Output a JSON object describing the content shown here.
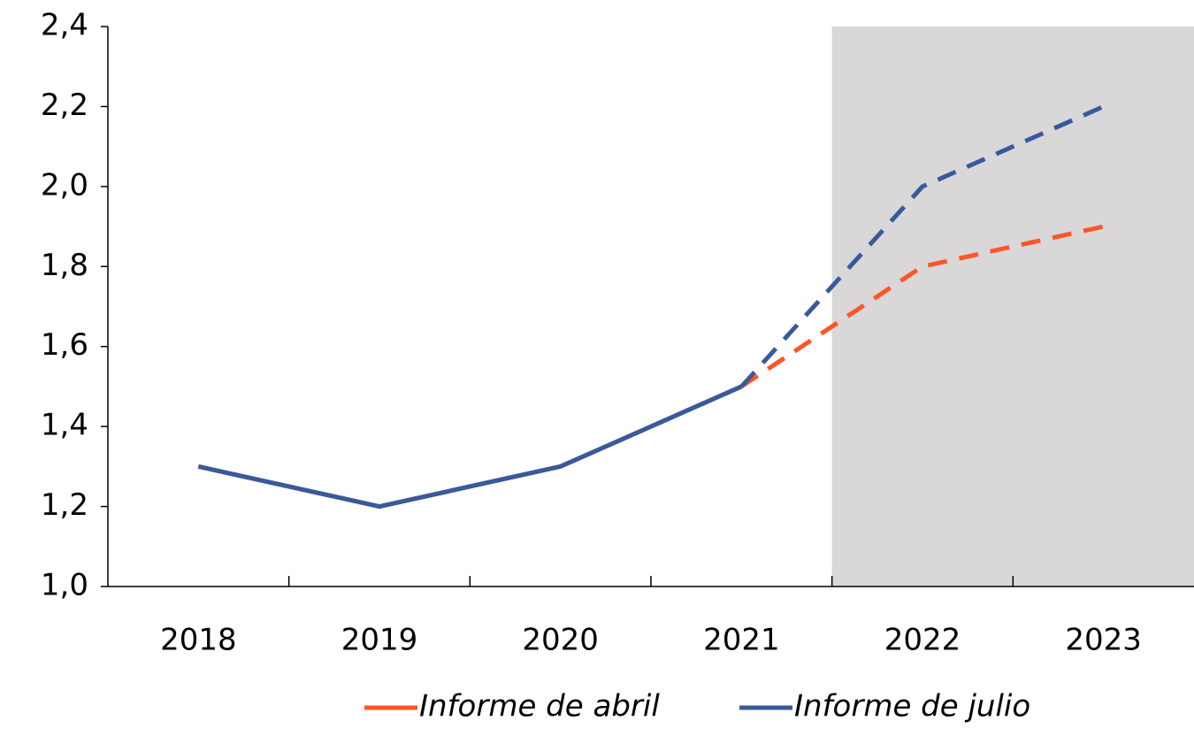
{
  "chart_data": {
    "type": "line",
    "categories": [
      "2018",
      "2019",
      "2020",
      "2021",
      "2022",
      "2023"
    ],
    "series": [
      {
        "name": "Informe de abril",
        "color": "#fc5626",
        "values": [
          1.3,
          1.2,
          1.3,
          1.5,
          1.8,
          1.9
        ]
      },
      {
        "name": "Informe de julio",
        "color": "#375a9c",
        "values": [
          1.3,
          1.2,
          1.3,
          1.5,
          2.0,
          2.2
        ]
      }
    ],
    "projection_start": "2022",
    "shade_color": "#d9d7d8",
    "ylim": [
      1.0,
      2.4
    ],
    "yticks": [
      {
        "value": 1.0,
        "label": "1,0"
      },
      {
        "value": 1.2,
        "label": "1,2"
      },
      {
        "value": 1.4,
        "label": "1,4"
      },
      {
        "value": 1.6,
        "label": "1,6"
      },
      {
        "value": 1.8,
        "label": "1,8"
      },
      {
        "value": 2.0,
        "label": "2,0"
      },
      {
        "value": 2.2,
        "label": "2,2"
      },
      {
        "value": 2.4,
        "label": "2,4"
      }
    ],
    "grid": false,
    "legend": "bottom"
  }
}
